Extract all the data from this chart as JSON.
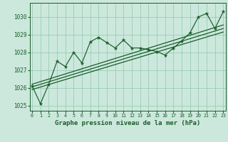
{
  "title": "Graphe pression niveau de la mer (hPa)",
  "bg_color": "#cce8dc",
  "plot_bg_color": "#cce8dc",
  "grid_color": "#99ccb8",
  "line_color": "#1a5c2a",
  "hours": [
    0,
    1,
    2,
    3,
    4,
    5,
    6,
    7,
    8,
    9,
    10,
    11,
    12,
    13,
    14,
    15,
    16,
    17,
    18,
    19,
    20,
    21,
    22,
    23
  ],
  "pressure": [
    1026.1,
    1025.1,
    1026.2,
    1027.5,
    1027.2,
    1028.0,
    1027.4,
    1028.6,
    1028.85,
    1028.55,
    1028.25,
    1028.7,
    1028.25,
    1028.25,
    1028.15,
    1028.05,
    1027.85,
    1028.25,
    1028.65,
    1029.1,
    1030.0,
    1030.2,
    1029.35,
    1030.3
  ],
  "trend_lines": [
    [
      1025.9,
      1029.15
    ],
    [
      1026.05,
      1029.35
    ],
    [
      1026.2,
      1029.55
    ]
  ],
  "ylim": [
    1024.7,
    1030.8
  ],
  "xlim": [
    -0.3,
    23.3
  ],
  "yticks": [
    1025,
    1026,
    1027,
    1028,
    1029,
    1030
  ]
}
